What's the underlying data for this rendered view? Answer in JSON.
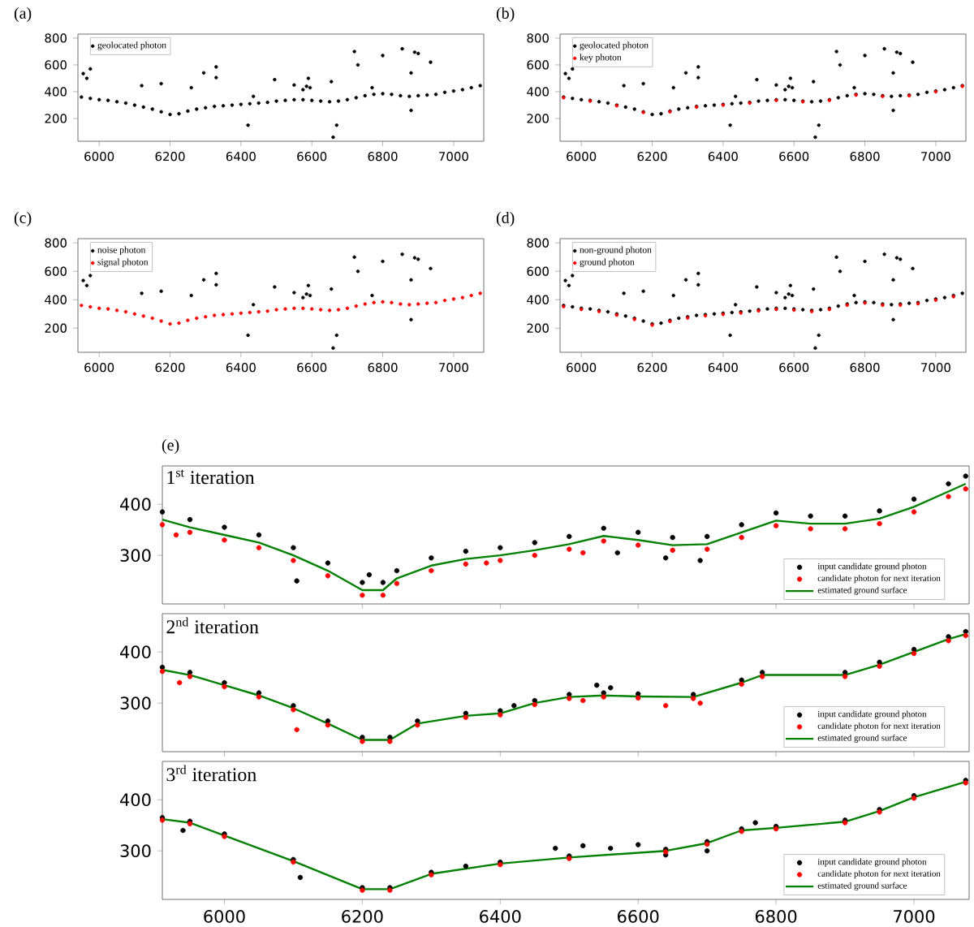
{
  "chart_data": [
    {
      "type": "scatter",
      "title": "(a)",
      "xlim": [
        5940,
        7085
      ],
      "ylim": [
        30,
        830
      ],
      "xticks": [
        6000,
        6200,
        6400,
        6600,
        6800,
        7000
      ],
      "yticks": [
        200,
        400,
        600,
        800
      ],
      "legend": "top left",
      "series": [
        {
          "name": "geolocated photon",
          "color": "#000000",
          "x": [
            5950,
            5975,
            6000,
            6025,
            6050,
            6075,
            6100,
            6125,
            6150,
            6175,
            6200,
            6225,
            6250,
            6275,
            6300,
            6325,
            6350,
            6375,
            6400,
            6425,
            6450,
            6475,
            6500,
            6525,
            6550,
            6575,
            6600,
            6625,
            6650,
            6675,
            6700,
            6725,
            6750,
            6775,
            6800,
            6825,
            6850,
            6875,
            6900,
            6925,
            6950,
            6975,
            7000,
            7025,
            7050,
            7075,
            5955,
            5965,
            5975,
            6120,
            6175,
            6260,
            6295,
            6330,
            6330,
            6420,
            6435,
            6495,
            6550,
            6575,
            6585,
            6590,
            6595,
            6655,
            6660,
            6670,
            6720,
            6730,
            6770,
            6800,
            6855,
            6880,
            6880,
            6890,
            6900,
            6935
          ],
          "values": [
            360,
            350,
            340,
            335,
            325,
            315,
            300,
            285,
            270,
            250,
            230,
            235,
            255,
            270,
            280,
            290,
            295,
            300,
            305,
            310,
            315,
            320,
            330,
            335,
            340,
            340,
            335,
            330,
            325,
            330,
            340,
            355,
            370,
            380,
            385,
            380,
            370,
            365,
            370,
            375,
            380,
            395,
            405,
            415,
            430,
            445,
            535,
            500,
            570,
            445,
            460,
            430,
            540,
            585,
            505,
            150,
            365,
            490,
            450,
            415,
            440,
            500,
            430,
            475,
            60,
            150,
            700,
            600,
            430,
            670,
            720,
            540,
            260,
            695,
            685,
            620
          ]
        }
      ]
    },
    {
      "type": "scatter",
      "title": "(b)",
      "xlim": [
        5940,
        7085
      ],
      "ylim": [
        30,
        830
      ],
      "xticks": [
        6000,
        6200,
        6400,
        6600,
        6800,
        7000
      ],
      "yticks": [
        200,
        400,
        600,
        800
      ],
      "legend": "top left",
      "series": [
        {
          "name": "geolocated photon",
          "color": "#000000",
          "x": [
            5950,
            5975,
            6000,
            6025,
            6050,
            6075,
            6100,
            6125,
            6150,
            6175,
            6200,
            6225,
            6250,
            6275,
            6300,
            6325,
            6350,
            6375,
            6400,
            6425,
            6450,
            6475,
            6500,
            6525,
            6550,
            6575,
            6600,
            6625,
            6650,
            6675,
            6700,
            6725,
            6750,
            6775,
            6800,
            6825,
            6850,
            6875,
            6900,
            6925,
            6950,
            6975,
            7000,
            7025,
            7050,
            7075,
            5955,
            5965,
            5975,
            6120,
            6175,
            6260,
            6295,
            6330,
            6330,
            6420,
            6435,
            6495,
            6550,
            6575,
            6585,
            6590,
            6595,
            6655,
            6660,
            6670,
            6720,
            6730,
            6770,
            6800,
            6855,
            6880,
            6880,
            6890,
            6900,
            6935
          ],
          "values": [
            360,
            350,
            340,
            335,
            325,
            315,
            300,
            285,
            270,
            250,
            230,
            235,
            255,
            270,
            280,
            290,
            295,
            300,
            305,
            310,
            315,
            320,
            330,
            335,
            340,
            340,
            335,
            330,
            325,
            330,
            340,
            355,
            370,
            380,
            385,
            380,
            370,
            365,
            370,
            375,
            380,
            395,
            405,
            415,
            430,
            445,
            535,
            500,
            570,
            445,
            460,
            430,
            540,
            585,
            505,
            150,
            365,
            490,
            450,
            415,
            440,
            500,
            430,
            475,
            60,
            150,
            700,
            600,
            430,
            670,
            720,
            540,
            260,
            695,
            685,
            620
          ]
        },
        {
          "name": "key photon",
          "color": "#ff0000",
          "x": [
            5950,
            6025,
            6100,
            6175,
            6250,
            6325,
            6400,
            6475,
            6550,
            6625,
            6700,
            6775,
            6850,
            6925,
            7000,
            7075
          ],
          "values": [
            355,
            330,
            295,
            245,
            250,
            285,
            300,
            315,
            335,
            325,
            335,
            375,
            365,
            370,
            400,
            440
          ]
        }
      ]
    },
    {
      "type": "scatter",
      "title": "(c)",
      "xlim": [
        5940,
        7085
      ],
      "ylim": [
        30,
        830
      ],
      "xticks": [
        6000,
        6200,
        6400,
        6600,
        6800,
        7000
      ],
      "yticks": [
        200,
        400,
        600,
        800
      ],
      "legend": "top left",
      "series": [
        {
          "name": "noise photon",
          "color": "#000000",
          "x": [
            5955,
            5965,
            5975,
            6120,
            6175,
            6260,
            6295,
            6330,
            6330,
            6420,
            6435,
            6495,
            6550,
            6575,
            6585,
            6590,
            6595,
            6655,
            6660,
            6670,
            6720,
            6730,
            6770,
            6800,
            6855,
            6880,
            6880,
            6890,
            6900,
            6935
          ],
          "values": [
            535,
            500,
            570,
            445,
            460,
            430,
            540,
            585,
            505,
            150,
            365,
            490,
            450,
            415,
            440,
            500,
            430,
            475,
            60,
            150,
            700,
            600,
            430,
            670,
            720,
            540,
            260,
            695,
            685,
            620
          ]
        },
        {
          "name": "signal photon",
          "color": "#ff0000",
          "x": [
            5950,
            5975,
            6000,
            6025,
            6050,
            6075,
            6100,
            6125,
            6150,
            6175,
            6200,
            6225,
            6250,
            6275,
            6300,
            6325,
            6350,
            6375,
            6400,
            6425,
            6450,
            6475,
            6500,
            6525,
            6550,
            6575,
            6600,
            6625,
            6650,
            6675,
            6700,
            6725,
            6750,
            6775,
            6800,
            6825,
            6850,
            6875,
            6900,
            6925,
            6950,
            6975,
            7000,
            7025,
            7050,
            7075
          ],
          "values": [
            360,
            350,
            340,
            335,
            325,
            315,
            300,
            285,
            270,
            250,
            230,
            235,
            255,
            270,
            280,
            290,
            295,
            300,
            305,
            310,
            315,
            320,
            330,
            335,
            340,
            340,
            335,
            330,
            325,
            330,
            340,
            355,
            370,
            380,
            385,
            380,
            370,
            365,
            370,
            375,
            380,
            395,
            405,
            415,
            430,
            445
          ]
        }
      ]
    },
    {
      "type": "scatter",
      "title": "(d)",
      "xlim": [
        5940,
        7085
      ],
      "ylim": [
        30,
        830
      ],
      "xticks": [
        6000,
        6200,
        6400,
        6600,
        6800,
        7000
      ],
      "yticks": [
        200,
        400,
        600,
        800
      ],
      "legend": "top left",
      "series": [
        {
          "name": "non-ground photon",
          "color": "#000000",
          "x": [
            5950,
            5975,
            6000,
            6025,
            6050,
            6075,
            6100,
            6125,
            6150,
            6175,
            6200,
            6225,
            6250,
            6275,
            6300,
            6325,
            6350,
            6375,
            6400,
            6425,
            6450,
            6475,
            6500,
            6525,
            6550,
            6575,
            6600,
            6625,
            6650,
            6675,
            6700,
            6725,
            6750,
            6775,
            6800,
            6825,
            6850,
            6875,
            6900,
            6925,
            6950,
            6975,
            7000,
            7025,
            7050,
            7075,
            5955,
            5965,
            5975,
            6120,
            6175,
            6260,
            6295,
            6330,
            6330,
            6420,
            6435,
            6495,
            6550,
            6575,
            6585,
            6590,
            6595,
            6655,
            6660,
            6670,
            6720,
            6730,
            6770,
            6800,
            6855,
            6880,
            6880,
            6890,
            6900,
            6935
          ],
          "values": [
            360,
            350,
            340,
            335,
            325,
            315,
            300,
            285,
            270,
            250,
            230,
            235,
            255,
            270,
            280,
            290,
            295,
            300,
            305,
            310,
            315,
            320,
            330,
            335,
            340,
            340,
            335,
            330,
            325,
            330,
            340,
            355,
            370,
            380,
            385,
            380,
            370,
            365,
            370,
            375,
            380,
            395,
            405,
            415,
            430,
            445,
            535,
            500,
            570,
            445,
            460,
            430,
            540,
            585,
            505,
            150,
            365,
            490,
            450,
            415,
            440,
            500,
            430,
            475,
            60,
            150,
            700,
            600,
            430,
            670,
            720,
            540,
            260,
            695,
            685,
            620
          ]
        },
        {
          "name": "ground photon",
          "color": "#ff0000",
          "x": [
            5950,
            6000,
            6050,
            6100,
            6150,
            6200,
            6250,
            6300,
            6350,
            6400,
            6450,
            6500,
            6550,
            6600,
            6650,
            6700,
            6750,
            6800,
            6850,
            6900,
            6950,
            7000,
            7050
          ],
          "values": [
            352,
            332,
            317,
            292,
            262,
            222,
            247,
            272,
            287,
            297,
            307,
            322,
            332,
            327,
            317,
            332,
            362,
            377,
            362,
            362,
            372,
            397,
            422
          ]
        }
      ]
    },
    {
      "type": "scatter",
      "title": "(e)",
      "annotations": [
        "1$^{st}$ iteration"
      ],
      "xlim": [
        5910,
        7080
      ],
      "ylim": [
        205,
        475
      ],
      "xticks": [
        6000,
        6200,
        6400,
        6600,
        6800,
        7000
      ],
      "yticks": [
        300,
        400
      ],
      "tick_labels": "y",
      "legend": "bottom right",
      "series": [
        {
          "name": "input candidate ground photon",
          "color": "#000000",
          "x": [
            5910,
            5950,
            6000,
            6050,
            6100,
            6150,
            6200,
            6230,
            6250,
            6300,
            6350,
            6400,
            6450,
            6500,
            6550,
            6600,
            6650,
            6700,
            6750,
            6800,
            6850,
            6900,
            6950,
            7000,
            7050,
            7075,
            6105,
            6210,
            6640,
            6690,
            6570
          ],
          "values": [
            385,
            370,
            355,
            340,
            315,
            285,
            247,
            247,
            270,
            295,
            308,
            315,
            325,
            337,
            353,
            345,
            335,
            337,
            360,
            383,
            377,
            377,
            387,
            410,
            440,
            455,
            250,
            262,
            295,
            290,
            305
          ]
        },
        {
          "name": "candidate photon for next iteration",
          "color": "#ff0000",
          "x": [
            5910,
            5950,
            6000,
            6050,
            6100,
            6150,
            6200,
            6230,
            6250,
            6300,
            6350,
            6400,
            6450,
            6500,
            6550,
            6600,
            6650,
            6700,
            6750,
            6800,
            6850,
            6900,
            6950,
            7000,
            7050,
            7075,
            5930,
            6380,
            6520
          ],
          "values": [
            360,
            345,
            330,
            315,
            290,
            260,
            222,
            222,
            245,
            270,
            283,
            290,
            300,
            312,
            328,
            320,
            310,
            312,
            335,
            358,
            352,
            352,
            362,
            385,
            415,
            430,
            340,
            285,
            305
          ]
        },
        {
          "name": "estimated ground surface",
          "type": "line",
          "color": "#008000",
          "x": [
            5910,
            5950,
            6000,
            6050,
            6100,
            6150,
            6200,
            6230,
            6250,
            6300,
            6350,
            6400,
            6450,
            6500,
            6550,
            6600,
            6650,
            6700,
            6750,
            6800,
            6850,
            6900,
            6950,
            7000,
            7050,
            7075
          ],
          "values": [
            370,
            355,
            340,
            325,
            300,
            270,
            232,
            232,
            255,
            280,
            293,
            300,
            310,
            322,
            338,
            330,
            320,
            322,
            345,
            368,
            362,
            362,
            372,
            395,
            425,
            440
          ]
        }
      ]
    },
    {
      "type": "scatter",
      "annotations": [
        "2$^{nd}$ iteration"
      ],
      "xlim": [
        5910,
        7080
      ],
      "ylim": [
        205,
        475
      ],
      "xticks": [
        6000,
        6200,
        6400,
        6600,
        6800,
        7000
      ],
      "yticks": [
        300,
        400
      ],
      "tick_labels": "y",
      "legend": "bottom right",
      "series": [
        {
          "name": "input candidate ground photon",
          "color": "#000000",
          "x": [
            5910,
            5950,
            6000,
            6050,
            6100,
            6150,
            6200,
            6240,
            6280,
            6350,
            6400,
            6450,
            6500,
            6550,
            6600,
            6680,
            6750,
            6780,
            6900,
            6950,
            7000,
            7050,
            7075,
            6540,
            6560,
            6420
          ],
          "values": [
            370,
            360,
            340,
            320,
            295,
            265,
            233,
            233,
            265,
            280,
            285,
            305,
            317,
            320,
            318,
            317,
            345,
            360,
            360,
            380,
            405,
            430,
            440,
            335,
            330,
            295
          ]
        },
        {
          "name": "candidate photon for next iteration",
          "color": "#ff0000",
          "x": [
            5910,
            5950,
            6000,
            6050,
            6100,
            6150,
            6200,
            6240,
            6280,
            6350,
            6400,
            6450,
            6500,
            6550,
            6600,
            6680,
            6750,
            6780,
            6900,
            6950,
            7000,
            7050,
            7075,
            6105,
            5935,
            6520,
            6640,
            6690
          ],
          "values": [
            362,
            352,
            332,
            312,
            287,
            257,
            225,
            225,
            257,
            272,
            277,
            297,
            309,
            312,
            310,
            309,
            337,
            352,
            352,
            372,
            397,
            422,
            432,
            248,
            340,
            305,
            295,
            300
          ]
        },
        {
          "name": "estimated ground surface",
          "type": "line",
          "color": "#008000",
          "x": [
            5910,
            5950,
            6000,
            6050,
            6100,
            6150,
            6200,
            6240,
            6280,
            6350,
            6400,
            6450,
            6500,
            6550,
            6600,
            6680,
            6750,
            6780,
            6900,
            6950,
            7000,
            7050,
            7075
          ],
          "values": [
            365,
            355,
            335,
            315,
            290,
            260,
            228,
            228,
            260,
            275,
            280,
            300,
            312,
            315,
            313,
            312,
            340,
            355,
            355,
            375,
            400,
            425,
            435
          ]
        }
      ]
    },
    {
      "type": "scatter",
      "annotations": [
        "3$^{rd}$ iteration"
      ],
      "xlim": [
        5910,
        7080
      ],
      "ylim": [
        205,
        475
      ],
      "xticks": [
        6000,
        6200,
        6400,
        6600,
        6800,
        7000
      ],
      "yticks": [
        300,
        400
      ],
      "legend": "bottom right",
      "series": [
        {
          "name": "input candidate ground photon",
          "color": "#000000",
          "x": [
            5910,
            5950,
            6000,
            6100,
            6200,
            6240,
            6300,
            6400,
            6500,
            6640,
            6700,
            6750,
            6800,
            6900,
            6950,
            7000,
            7075,
            5940,
            6110,
            6480,
            6520,
            6560,
            6600,
            6700,
            6770,
            6640,
            6350
          ],
          "values": [
            365,
            358,
            333,
            283,
            228,
            228,
            258,
            278,
            290,
            303,
            318,
            343,
            348,
            360,
            381,
            408,
            438,
            340,
            248,
            305,
            310,
            305,
            312,
            300,
            355,
            292,
            270
          ]
        },
        {
          "name": "candidate photon for next iteration",
          "color": "#ff0000",
          "x": [
            5910,
            5950,
            6000,
            6100,
            6200,
            6240,
            6300,
            6400,
            6500,
            6640,
            6700,
            6750,
            6800,
            6900,
            6950,
            7000,
            7075
          ],
          "values": [
            360,
            353,
            328,
            278,
            223,
            223,
            253,
            273,
            285,
            298,
            313,
            338,
            343,
            355,
            376,
            403,
            433
          ]
        },
        {
          "name": "estimated ground surface",
          "type": "line",
          "color": "#008000",
          "x": [
            5910,
            5950,
            6000,
            6100,
            6200,
            6240,
            6300,
            6400,
            6500,
            6640,
            6700,
            6750,
            6800,
            6900,
            6950,
            7000,
            7075
          ],
          "values": [
            362,
            355,
            330,
            280,
            225,
            225,
            255,
            275,
            287,
            300,
            315,
            340,
            345,
            357,
            378,
            405,
            435
          ]
        }
      ]
    }
  ]
}
